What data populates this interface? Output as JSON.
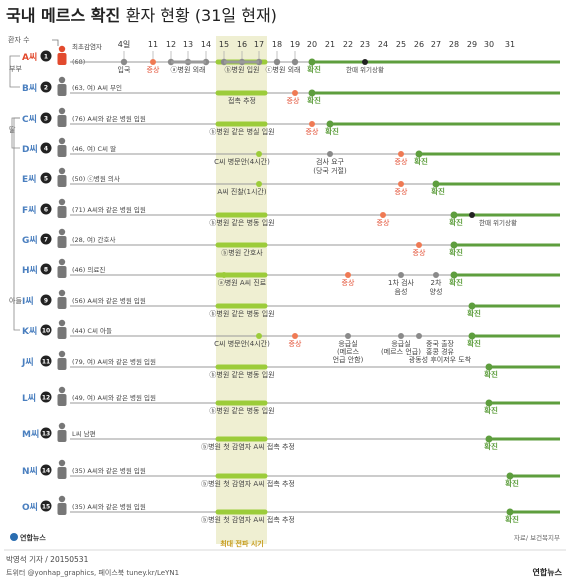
{
  "header": {
    "title": "국내 메르스 확진",
    "subtitle": "환자 현황 (31일 현재)"
  },
  "labels": {
    "patient_count": "환자 수",
    "peak": "최대 전파 시기",
    "source": "자료/ 보건복지부",
    "author": "박영석 기자 / 20150531",
    "sns": "트위터 @yonhap_graphics, 페이스북 tuney.kr/LeYN1",
    "logo_small": "연합뉴스",
    "logo_right": "연합뉴스"
  },
  "dates": [
    "4일",
    "11",
    "12",
    "13",
    "14",
    "15",
    "16",
    "17",
    "18",
    "19",
    "20",
    "21",
    "22",
    "23",
    "24",
    "25",
    "26",
    "27",
    "28",
    "29",
    "30",
    "31"
  ],
  "relations": {
    "r1": "부부",
    "r2": "딸",
    "r3": "아들"
  },
  "colors": {
    "green": "#5e9e3e",
    "lightgreen": "#9ccc3a",
    "red": "#e24a2e",
    "salmon": "#ef7a54",
    "grey": "#8a8a8a",
    "band": "#efefd2"
  },
  "patients": [
    {
      "name": "A씨",
      "num": "1",
      "desc": "최초감염자",
      "age": "(68)",
      "notes": [
        "입국",
        "증상",
        "ⓐ병원 외래",
        "ⓑ병원 입원",
        "ⓒ병원 외래",
        "확진",
        "한때 위기상황"
      ]
    },
    {
      "name": "B씨",
      "num": "2",
      "desc": "(63, 여) A씨 부인",
      "notes": [
        "증상",
        "확진"
      ]
    },
    {
      "name": "C씨",
      "num": "3",
      "desc": "(76) A씨와 같은 병원 입원",
      "notes": [
        "ⓑ병원 같은 병실 입원",
        "증상",
        "확진"
      ]
    },
    {
      "name": "D씨",
      "num": "4",
      "desc": "(46, 여) C씨 딸",
      "notes": [
        "C씨 병문안(4시간)",
        "검사 요구",
        "(당국 거절)",
        "증상",
        "확진"
      ]
    },
    {
      "name": "E씨",
      "num": "5",
      "desc": "(50) ⓒ병원 의사",
      "notes": [
        "A씨 진찰(1시간)",
        "증상",
        "확진"
      ]
    },
    {
      "name": "F씨",
      "num": "6",
      "desc": "(71) A씨와 같은 병원 입원",
      "notes": [
        "ⓑ병원 같은 병동 입원",
        "증상",
        "확진",
        "한때 위기상황"
      ]
    },
    {
      "name": "G씨",
      "num": "7",
      "desc": "(28, 여) 간호사",
      "notes": [
        "ⓑ병원 간호사",
        "증상",
        "확진"
      ]
    },
    {
      "name": "H씨",
      "num": "8",
      "desc": "(46) 의료진",
      "notes": [
        "ⓐ병원 A씨 진료",
        "증상",
        "1차 검사",
        "음성",
        "2차",
        "양성",
        "확진"
      ]
    },
    {
      "name": "I씨",
      "num": "9",
      "desc": "(56) A씨와 같은 병원 입원",
      "notes": [
        "ⓑ병원 같은 병동 입원",
        "확진"
      ]
    },
    {
      "name": "K씨",
      "num": "10",
      "desc": "(44) C씨 아들",
      "notes": [
        "C씨 병문안(4시간)",
        "증상",
        "응급실",
        "(메르스",
        "언급 안함)",
        "응급실",
        "(메르스 언급)",
        "중국 출장",
        "홍콩 경유",
        "광동성 후이저우 도착",
        "확진"
      ]
    },
    {
      "name": "J씨",
      "num": "11",
      "desc": "(79, 여) A씨와 같은 병원 입원",
      "notes": [
        "ⓑ병원 같은 병동 입원",
        "확진"
      ]
    },
    {
      "name": "L씨",
      "num": "12",
      "desc": "(49, 여) A씨와 같은 병원 입원",
      "notes": [
        "ⓑ병원 같은 병동 입원",
        "확진"
      ]
    },
    {
      "name": "M씨",
      "num": "13",
      "desc": "L씨 남편",
      "notes": [
        "ⓑ병원 첫 감염자 A씨 접촉 추정",
        "확진"
      ]
    },
    {
      "name": "N씨",
      "num": "14",
      "desc": "(35) A씨와 같은 병원 입원",
      "notes": [
        "ⓑ병원 첫 감염자 A씨 접촉 추정",
        "확진"
      ]
    },
    {
      "name": "O씨",
      "num": "15",
      "desc": "(35) A씨와 같은 병원 입원",
      "notes": [
        "ⓑ병원 첫 감염자 A씨 접촉 추정",
        "확진"
      ]
    }
  ],
  "row2_contact": "접촉 추정"
}
